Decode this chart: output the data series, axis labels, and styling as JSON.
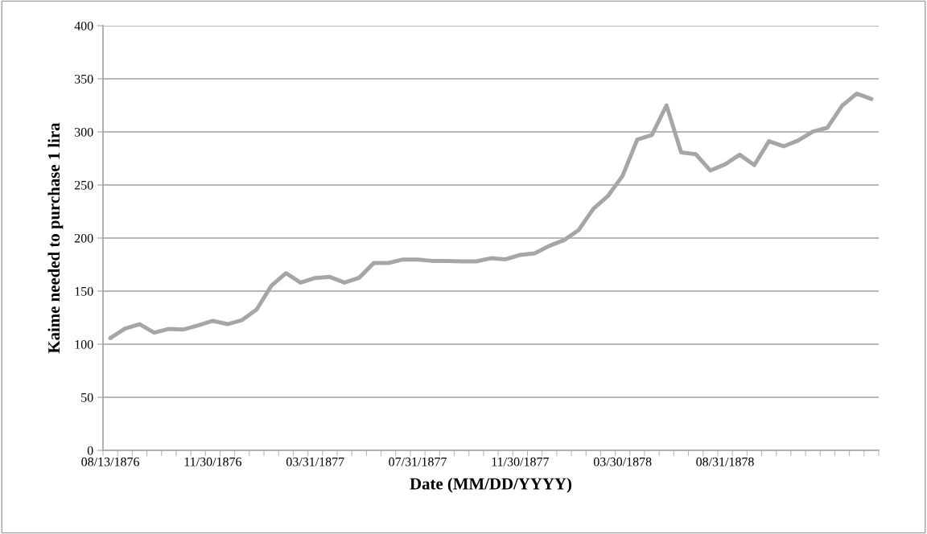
{
  "chart_data": {
    "type": "line",
    "xlabel": "Date (MM/DD/YYYY)",
    "ylabel": "Kaime needed to purchase 1 lira",
    "categories": [
      "08/13/1876",
      null,
      null,
      null,
      null,
      null,
      null,
      "11/30/1876",
      null,
      null,
      null,
      null,
      null,
      null,
      "03/31/1877",
      null,
      null,
      null,
      null,
      null,
      null,
      "07/31/1877",
      null,
      null,
      null,
      null,
      null,
      null,
      "11/30/1877",
      null,
      null,
      null,
      null,
      null,
      null,
      "03/30/1878",
      null,
      null,
      null,
      null,
      null,
      null,
      "08/31/1878",
      null,
      null,
      null,
      null,
      null,
      null,
      null,
      null,
      null,
      null
    ],
    "series": [
      {
        "color": "#a6a6a6",
        "values": [
          105.8,
          114.6,
          118.9,
          110.9,
          114.4,
          113.9,
          117.7,
          122,
          118.9,
          122.7,
          132.8,
          155,
          166.9,
          158,
          162.4,
          163.4,
          158,
          162.6,
          176.5,
          176.5,
          179.8,
          179.8,
          178.5,
          178.5,
          178,
          178,
          181,
          180,
          184.1,
          185.6,
          192.7,
          198,
          207.6,
          227.5,
          239.6,
          258.6,
          292.7,
          297,
          325,
          280.6,
          279,
          263.6,
          269.4,
          278.5,
          268.7,
          291.2,
          286.4,
          291.9,
          300.3,
          304,
          324.7,
          336.1,
          331
        ]
      }
    ],
    "ylim": [
      0,
      400
    ],
    "yticks": [
      0,
      50,
      100,
      150,
      200,
      250,
      300,
      350,
      400
    ],
    "grid": "y",
    "marker": "none",
    "line_style": "solid"
  }
}
